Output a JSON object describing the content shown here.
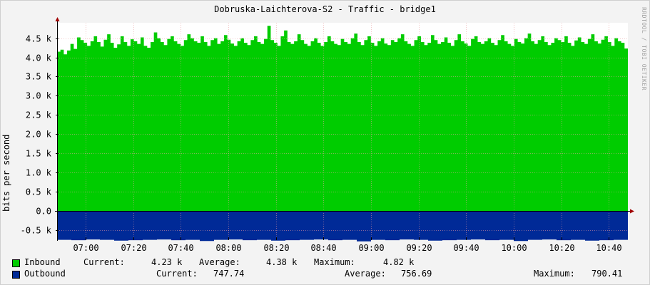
{
  "title": "Dobruska-Laichterova-S2 - Traffic - bridge1",
  "watermark": "RRDTOOL / TOBI OETIKER",
  "chart_data": {
    "type": "area",
    "title": "Dobruska-Laichterova-S2 - Traffic - bridge1",
    "ylabel": "bits per second",
    "ylim": [
      -0.72,
      4.9
    ],
    "y_unit": "k",
    "y_ticks": [
      -0.5,
      0.0,
      0.5,
      1.0,
      1.5,
      2.0,
      2.5,
      3.0,
      3.5,
      4.0,
      4.5
    ],
    "y_tick_labels": [
      "-0.5 k",
      "0.0",
      "0.5 k",
      "1.0 k",
      "1.5 k",
      "2.0 k",
      "2.5 k",
      "3.0 k",
      "3.5 k",
      "4.0 k",
      "4.5 k"
    ],
    "x_range": [
      "06:48",
      "10:48"
    ],
    "x_ticks": [
      "07:00",
      "07:20",
      "07:40",
      "08:00",
      "08:20",
      "08:40",
      "09:00",
      "09:20",
      "09:40",
      "10:00",
      "10:20",
      "10:40"
    ],
    "grid": true,
    "series": [
      {
        "name": "Inbound",
        "color": "#00cc00",
        "values": [
          4.15,
          4.2,
          4.08,
          4.18,
          4.35,
          4.22,
          4.52,
          4.45,
          4.38,
          4.3,
          4.42,
          4.55,
          4.4,
          4.28,
          4.46,
          4.6,
          4.38,
          4.25,
          4.34,
          4.55,
          4.4,
          4.3,
          4.47,
          4.42,
          4.35,
          4.52,
          4.3,
          4.25,
          4.4,
          4.65,
          4.5,
          4.4,
          4.32,
          4.48,
          4.55,
          4.42,
          4.35,
          4.3,
          4.45,
          4.6,
          4.5,
          4.42,
          4.38,
          4.55,
          4.4,
          4.3,
          4.45,
          4.5,
          4.35,
          4.42,
          4.58,
          4.46,
          4.36,
          4.3,
          4.42,
          4.5,
          4.38,
          4.32,
          4.45,
          4.55,
          4.4,
          4.35,
          4.48,
          4.82,
          4.45,
          4.38,
          4.3,
          4.55,
          4.7,
          4.4,
          4.35,
          4.42,
          4.6,
          4.45,
          4.35,
          4.3,
          4.42,
          4.5,
          4.38,
          4.3,
          4.4,
          4.55,
          4.42,
          4.35,
          4.32,
          4.48,
          4.4,
          4.35,
          4.5,
          4.62,
          4.4,
          4.32,
          4.45,
          4.55,
          4.38,
          4.3,
          4.42,
          4.5,
          4.36,
          4.32,
          4.45,
          4.4,
          4.5,
          4.6,
          4.42,
          4.35,
          4.3,
          4.45,
          4.55,
          4.4,
          4.32,
          4.38,
          4.58,
          4.45,
          4.35,
          4.4,
          4.52,
          4.38,
          4.3,
          4.45,
          4.6,
          4.42,
          4.36,
          4.3,
          4.48,
          4.55,
          4.4,
          4.35,
          4.42,
          4.5,
          4.38,
          4.32,
          4.45,
          4.58,
          4.42,
          4.35,
          4.3,
          4.48,
          4.4,
          4.36,
          4.5,
          4.62,
          4.42,
          4.35,
          4.45,
          4.55,
          4.4,
          4.32,
          4.38,
          4.5,
          4.45,
          4.4,
          4.55,
          4.38,
          4.3,
          4.44,
          4.52,
          4.4,
          4.35,
          4.48,
          4.6,
          4.42,
          4.36,
          4.46,
          4.55,
          4.4,
          4.3,
          4.5,
          4.42,
          4.38,
          4.23
        ]
      },
      {
        "name": "Outbound",
        "color": "#002a97",
        "values": [
          -0.75,
          -0.76,
          -0.74,
          -0.75,
          -0.77,
          -0.76,
          -0.75,
          -0.74,
          -0.76,
          -0.75,
          -0.78,
          -0.75,
          -0.74,
          -0.76,
          -0.75,
          -0.77,
          -0.76,
          -0.75,
          -0.74,
          -0.76,
          -0.75,
          -0.79,
          -0.75,
          -0.76,
          -0.74,
          -0.75,
          -0.77,
          -0.76,
          -0.75,
          -0.74,
          -0.76,
          -0.75,
          -0.78,
          -0.75,
          -0.74,
          -0.76,
          -0.75,
          -0.77,
          -0.76,
          -0.75
        ]
      }
    ],
    "legend": [
      {
        "name": "Inbound",
        "current": "4.23 k",
        "average": "4.38 k",
        "maximum": "4.82 k"
      },
      {
        "name": "Outbound",
        "current": "747.74",
        "average": "756.69",
        "maximum": "790.41"
      }
    ]
  },
  "legend_text": {
    "inbound": {
      "name": "Inbound",
      "current_label": "Current:",
      "current": "4.23 k",
      "average_label": "Average:",
      "average": "4.38 k",
      "maximum_label": "Maximum:",
      "maximum": "4.82 k"
    },
    "outbound": {
      "name": "Outbound",
      "current_label": "Current:",
      "current": "747.74",
      "average_label": "Average:",
      "average": "756.69",
      "maximum_label": "Maximum:",
      "maximum": "790.41"
    }
  }
}
